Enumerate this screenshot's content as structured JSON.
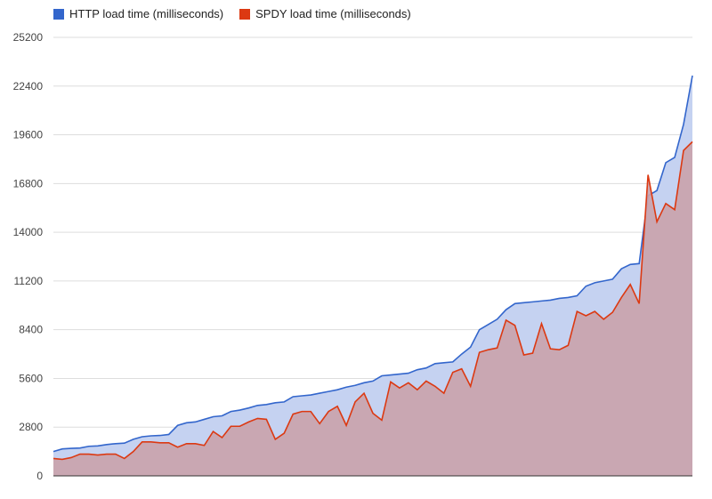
{
  "chart_data": {
    "type": "area",
    "legend_position": "top-left",
    "grid": true,
    "ylim": [
      0,
      25200
    ],
    "y_ticks": [
      "0",
      "2800",
      "5600",
      "8400",
      "11200",
      "14000",
      "16800",
      "19600",
      "22400",
      "25200"
    ],
    "series": [
      {
        "name": "HTTP load time (milliseconds)",
        "line_color": "#3366cc",
        "fill_color": "#c5d2f1",
        "values": [
          1400,
          1550,
          1580,
          1600,
          1700,
          1720,
          1800,
          1850,
          1880,
          2100,
          2250,
          2300,
          2320,
          2380,
          2900,
          3050,
          3100,
          3250,
          3400,
          3450,
          3700,
          3780,
          3900,
          4050,
          4100,
          4200,
          4250,
          4550,
          4600,
          4650,
          4750,
          4850,
          4950,
          5100,
          5200,
          5350,
          5450,
          5750,
          5800,
          5850,
          5900,
          6100,
          6200,
          6450,
          6500,
          6550,
          7000,
          7400,
          8400,
          8700,
          9000,
          9550,
          9900,
          9950,
          10000,
          10050,
          10100,
          10200,
          10250,
          10350,
          10900,
          11100,
          11200,
          11300,
          11900,
          12150,
          12200,
          16100,
          16400,
          18000,
          18300,
          20200,
          23000
        ]
      },
      {
        "name": "SPDY load time (milliseconds)",
        "line_color": "#dc3912",
        "fill_color": "#c9a3ac",
        "values": [
          1000,
          950,
          1050,
          1250,
          1250,
          1200,
          1250,
          1250,
          1000,
          1400,
          1950,
          1950,
          1900,
          1900,
          1650,
          1850,
          1850,
          1750,
          2550,
          2200,
          2850,
          2850,
          3100,
          3300,
          3250,
          2100,
          2450,
          3550,
          3700,
          3700,
          3000,
          3700,
          4000,
          2900,
          4250,
          4750,
          3600,
          3200,
          5400,
          5050,
          5350,
          4950,
          5450,
          5150,
          4750,
          5950,
          6150,
          5150,
          7100,
          7250,
          7350,
          8950,
          8650,
          6950,
          7050,
          8750,
          7300,
          7250,
          7500,
          9450,
          9200,
          9450,
          9000,
          9400,
          10250,
          11000,
          9900,
          17300,
          14600,
          15650,
          15300,
          18700,
          19200
        ]
      }
    ]
  }
}
